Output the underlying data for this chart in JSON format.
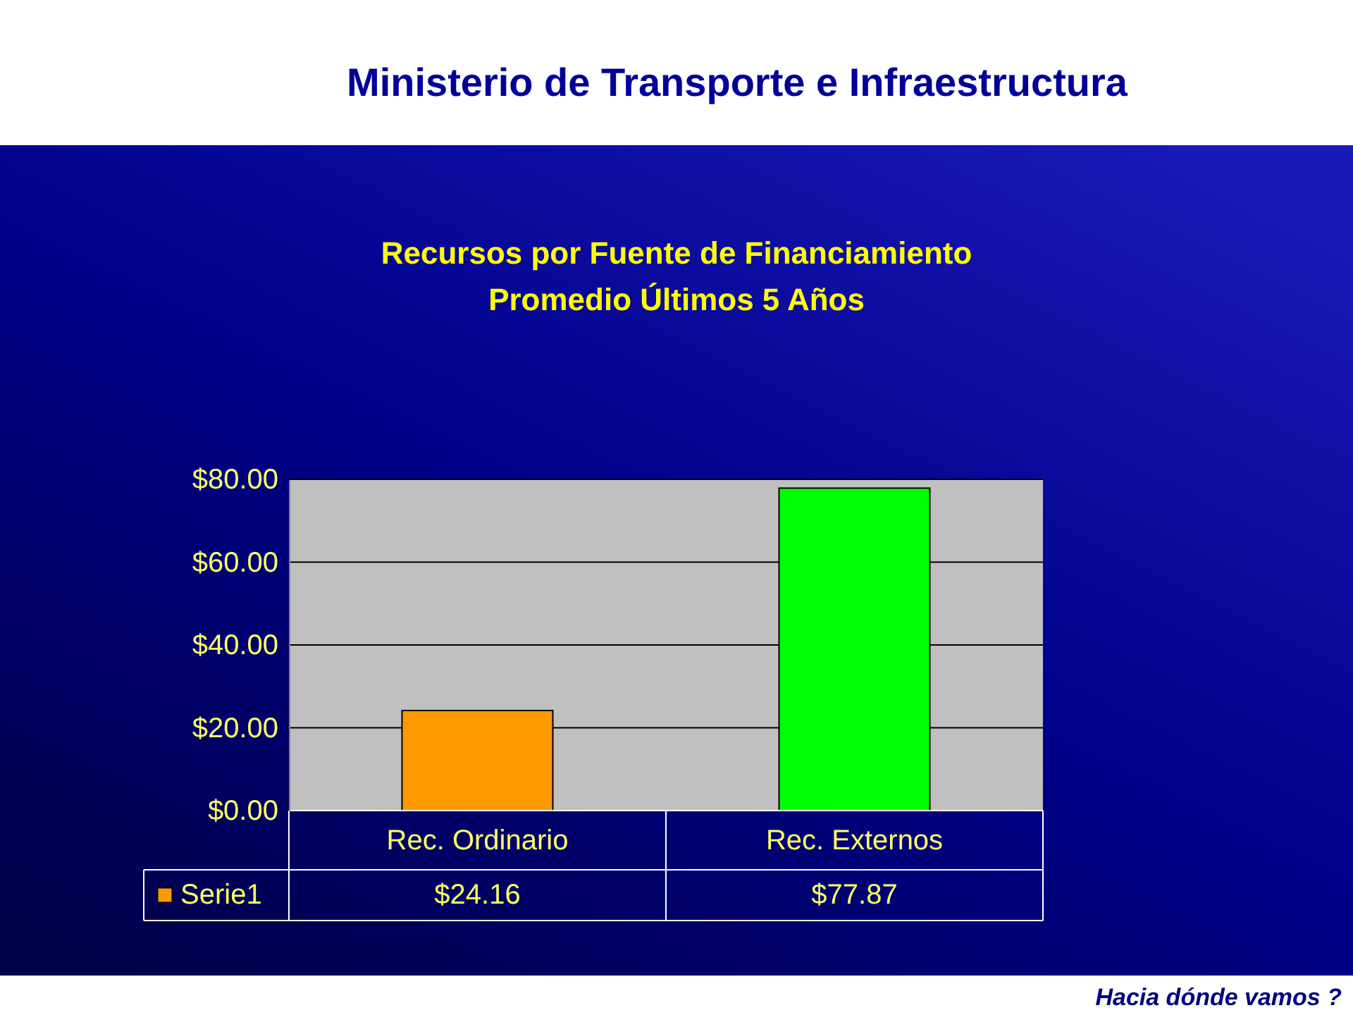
{
  "chart_data": {
    "type": "bar",
    "title": "Recursos por Fuente de Financiamiento",
    "subtitle": "Promedio Últimos 5 Años",
    "categories": [
      "Rec. Ordinario",
      "Rec. Externos"
    ],
    "series": [
      {
        "name": "Serie1",
        "color": "#ff9900",
        "colors": [
          "#ff9900",
          "#00ff00"
        ],
        "values": [
          24.16,
          77.87
        ],
        "value_labels": [
          "$24.16",
          "$77.87"
        ]
      }
    ],
    "ylim": [
      0,
      80
    ],
    "yticks": [
      {
        "value": 0,
        "label": "$0.00"
      },
      {
        "value": 20,
        "label": "$20.00"
      },
      {
        "value": 40,
        "label": "$40.00"
      },
      {
        "value": 60,
        "label": "$60.00"
      },
      {
        "value": 80,
        "label": "$80.00"
      }
    ],
    "grid": "y",
    "legend": "bottom left",
    "annotations": [
      "Ministerio de Transporte e Infraestructura",
      "Hacia dónde vamos ?"
    ]
  }
}
